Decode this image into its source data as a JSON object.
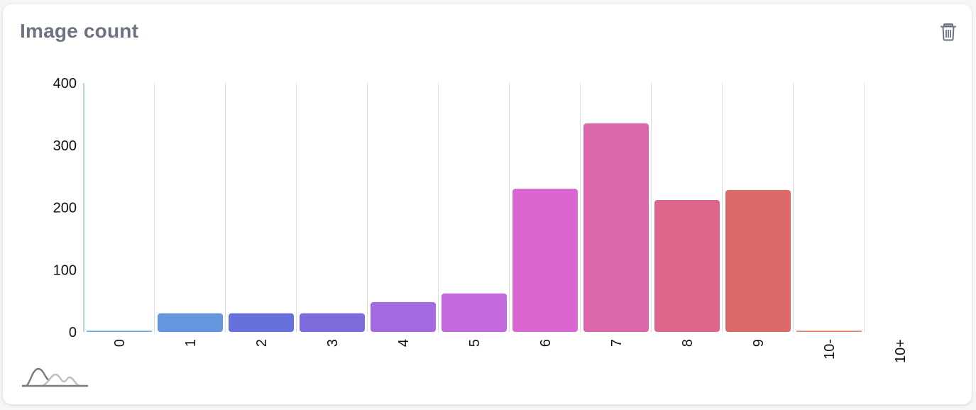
{
  "header": {
    "title": "Image count",
    "delete_icon": "trash-icon"
  },
  "toolbar": {
    "distribution_icon": "distribution-toggle-icon"
  },
  "chart_data": {
    "type": "bar",
    "categories": [
      "0",
      "1",
      "2",
      "3",
      "4",
      "5",
      "6",
      "7",
      "8",
      "9",
      "10-",
      "10+"
    ],
    "values": [
      2,
      30,
      30,
      30,
      48,
      62,
      230,
      335,
      212,
      228,
      2,
      0
    ],
    "colors": [
      "#6aa9e0",
      "#6495dd",
      "#6671dc",
      "#7f6adc",
      "#a56adf",
      "#c46adf",
      "#da67d1",
      "#da67aa",
      "#dc678a",
      "#dc6a68",
      "#e08464",
      "#e09a64"
    ],
    "title": "Image count",
    "xlabel": "",
    "ylabel": "",
    "ylim": [
      0,
      400
    ],
    "yticks": [
      "0",
      "100",
      "200",
      "300",
      "400"
    ],
    "grid": true
  }
}
